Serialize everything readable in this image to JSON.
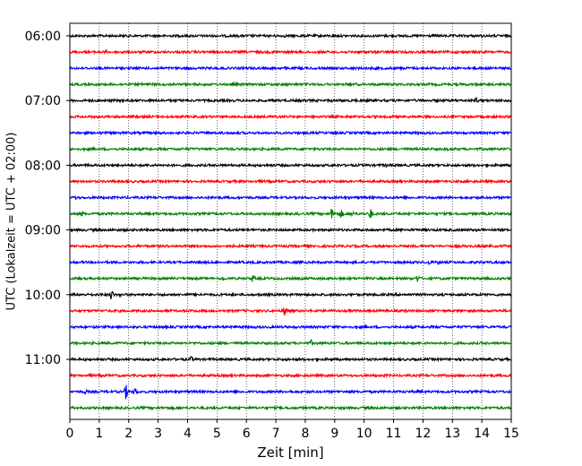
{
  "chart_data": {
    "type": "line",
    "title": "",
    "xlabel": "Zeit  [min]",
    "ylabel": "UTC (Lokalzeit = UTC + 02:00)",
    "xlim": [
      0,
      15
    ],
    "x_ticks": [
      0,
      1,
      2,
      3,
      4,
      5,
      6,
      7,
      8,
      9,
      10,
      11,
      12,
      13,
      14,
      15
    ],
    "y_ticks": [
      {
        "label": "06:00",
        "trace": 0
      },
      {
        "label": "07:00",
        "trace": 4
      },
      {
        "label": "08:00",
        "trace": 8
      },
      {
        "label": "09:00",
        "trace": 12
      },
      {
        "label": "10:00",
        "trace": 16
      },
      {
        "label": "11:00",
        "trace": 20
      }
    ],
    "grid": "vertical dotted",
    "traces": [
      {
        "start": "06:00",
        "color": "#000000",
        "events": [
          [
            4.2,
            2
          ],
          [
            7.3,
            2
          ],
          [
            10.7,
            1.5
          ],
          [
            14.0,
            2
          ]
        ]
      },
      {
        "start": "06:15",
        "color": "#ff0000",
        "events": [
          [
            1.2,
            3
          ],
          [
            1.8,
            3
          ]
        ]
      },
      {
        "start": "06:30",
        "color": "#0000ff",
        "events": []
      },
      {
        "start": "06:45",
        "color": "#008000",
        "events": [
          [
            9.5,
            4
          ]
        ]
      },
      {
        "start": "07:00",
        "color": "#000000",
        "events": [
          [
            13.8,
            4
          ]
        ]
      },
      {
        "start": "07:15",
        "color": "#ff0000",
        "events": []
      },
      {
        "start": "07:30",
        "color": "#0000ff",
        "events": []
      },
      {
        "start": "07:45",
        "color": "#008000",
        "events": [
          [
            4.6,
            2
          ],
          [
            5.2,
            2
          ]
        ]
      },
      {
        "start": "08:00",
        "color": "#000000",
        "events": [
          [
            8.3,
            2
          ],
          [
            10.7,
            3.5
          ]
        ]
      },
      {
        "start": "08:15",
        "color": "#ff0000",
        "events": [
          [
            9.9,
            2
          ],
          [
            12.5,
            2
          ]
        ]
      },
      {
        "start": "08:30",
        "color": "#0000ff",
        "events": [
          [
            0.2,
            3
          ],
          [
            14.0,
            2
          ]
        ]
      },
      {
        "start": "08:45",
        "color": "#008000",
        "events": [
          [
            0.4,
            4
          ],
          [
            7.7,
            3
          ],
          [
            8.9,
            8
          ],
          [
            9.2,
            7
          ],
          [
            9.6,
            4
          ],
          [
            10.2,
            8
          ],
          [
            14.1,
            2
          ]
        ]
      },
      {
        "start": "09:00",
        "color": "#000000",
        "events": [
          [
            1.9,
            2
          ]
        ]
      },
      {
        "start": "09:15",
        "color": "#ff0000",
        "events": []
      },
      {
        "start": "09:30",
        "color": "#0000ff",
        "events": [
          [
            12.2,
            3
          ],
          [
            12.5,
            3
          ],
          [
            14.8,
            3
          ]
        ]
      },
      {
        "start": "09:45",
        "color": "#008000",
        "events": [
          [
            5.2,
            3
          ],
          [
            6.2,
            5
          ],
          [
            11.8,
            5
          ],
          [
            14.5,
            2
          ]
        ]
      },
      {
        "start": "10:00",
        "color": "#000000",
        "events": [
          [
            1.4,
            7
          ],
          [
            1.7,
            3
          ]
        ]
      },
      {
        "start": "10:15",
        "color": "#ff0000",
        "events": [
          [
            7.3,
            8
          ]
        ]
      },
      {
        "start": "10:30",
        "color": "#0000ff",
        "events": []
      },
      {
        "start": "10:45",
        "color": "#008000",
        "events": [
          [
            8.2,
            4
          ],
          [
            12.1,
            2
          ]
        ]
      },
      {
        "start": "11:00",
        "color": "#000000",
        "events": [
          [
            4.1,
            5
          ]
        ]
      },
      {
        "start": "11:15",
        "color": "#ff0000",
        "events": []
      },
      {
        "start": "11:30",
        "color": "#0000ff",
        "events": [
          [
            0.5,
            4
          ],
          [
            1.9,
            9
          ],
          [
            2.2,
            6
          ],
          [
            7.5,
            3
          ],
          [
            11.8,
            3
          ]
        ]
      },
      {
        "start": "11:45",
        "color": "#008000",
        "events": [
          [
            3.5,
            2
          ],
          [
            8.5,
            2
          ]
        ]
      }
    ]
  }
}
